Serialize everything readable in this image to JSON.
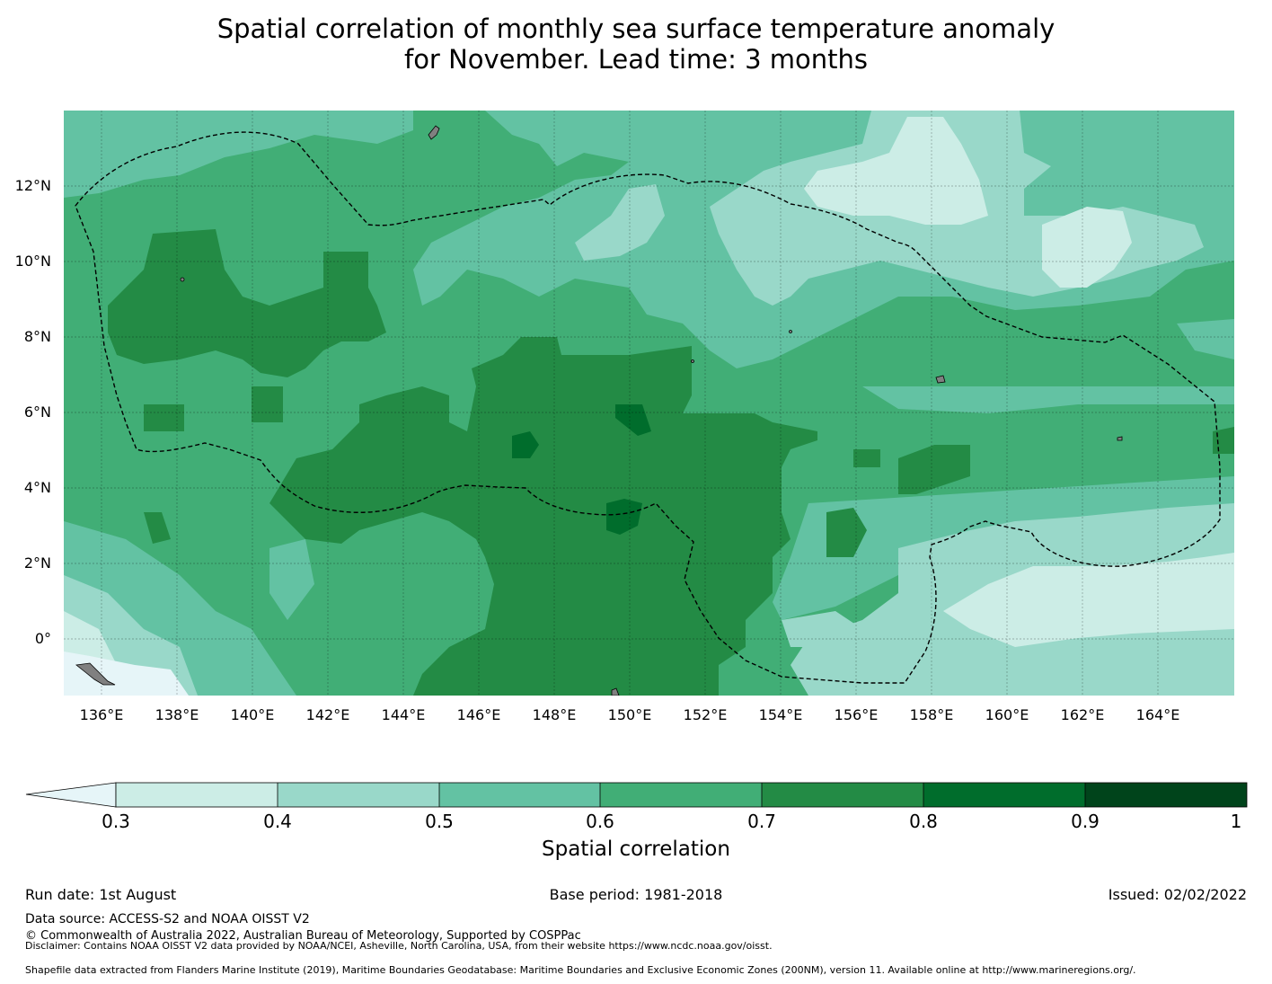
{
  "title": {
    "line1": "Spatial correlation of monthly sea surface temperature anomaly",
    "line2": "for November. Lead time: 3 months"
  },
  "map": {
    "lat_labels": [
      "12°N",
      "10°N",
      "8°N",
      "6°N",
      "4°N",
      "2°N",
      "0°"
    ],
    "lon_labels": [
      "136°E",
      "138°E",
      "140°E",
      "142°E",
      "144°E",
      "146°E",
      "148°E",
      "150°E",
      "152°E",
      "154°E",
      "156°E",
      "158°E",
      "160°E",
      "162°E",
      "164°E"
    ],
    "extent": {
      "lon": [
        135.0,
        166.0
      ],
      "lat": [
        -1.5,
        14.0
      ]
    },
    "colors": {
      "lt03": "#e6f5f8",
      "b03_04": "#ccede6",
      "b04_05": "#99d8c9",
      "b05_06": "#63c2a3",
      "b06_07": "#41ae76",
      "b07_08": "#238b45",
      "b08_09": "#006d2c",
      "b09_10": "#00441b",
      "land": "#808080",
      "eez_boundary": "#000000"
    }
  },
  "colorbar": {
    "ticks": [
      "0.3",
      "0.4",
      "0.5",
      "0.6",
      "0.7",
      "0.8",
      "0.9",
      "1"
    ],
    "label": "Spatial correlation",
    "extend": "min"
  },
  "footer": {
    "run_date": "Run date: 1st August",
    "base_period": "Base period: 1981-2018",
    "issued": "Issued: 02/02/2022",
    "data_source": "Data source: ACCESS-S2 and NOAA OISST V2",
    "copyright": "© Commonwealth of Australia 2022, Australian Bureau of Meteorology, Supported by COSPPac",
    "disclaimer": "Disclaimer: Contains NOAA OISST V2 data provided by NOAA/NCEI, Asheville, North Carolina, USA, from their website https://www.ncdc.noaa.gov/oisst.",
    "shapefile": "Shapefile data extracted from Flanders Marine Institute (2019), Maritime Boundaries Geodatabase: Maritime Boundaries and Exclusive Economic Zones (200NM), version 11. Available online at http://www.marineregions.org/."
  }
}
